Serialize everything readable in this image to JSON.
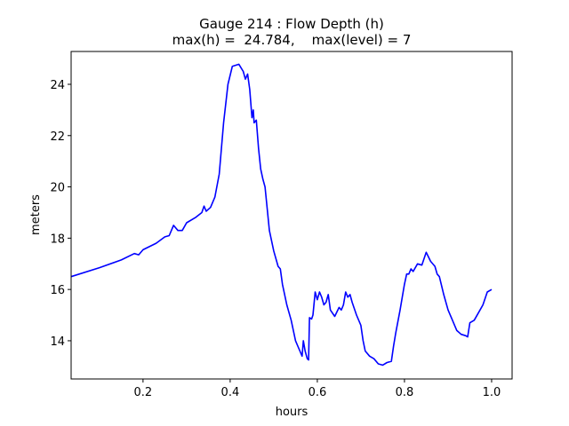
{
  "chart_data": {
    "type": "line",
    "title": "Gauge 214 : Flow Depth (h)",
    "subtitle": "max(h) =  24.784,    max(level) = 7",
    "x_label": "hours",
    "y_label": "meters",
    "xlim": [
      0.035,
      1.047
    ],
    "ylim": [
      12.51,
      25.28
    ],
    "xticks": [
      0.2,
      0.4,
      0.6,
      0.8,
      {
        "value": 1,
        "label": "1.0"
      }
    ],
    "yticks": [
      14,
      16,
      18,
      20,
      22,
      24
    ],
    "series": [
      {
        "color": "#0000ff",
        "x": [
          0.035,
          0.1,
          0.15,
          0.18,
          0.19,
          0.2,
          0.23,
          0.25,
          0.26,
          0.27,
          0.28,
          0.29,
          0.3,
          0.32,
          0.335,
          0.34,
          0.345,
          0.355,
          0.365,
          0.375,
          0.385,
          0.395,
          0.405,
          0.42,
          0.43,
          0.435,
          0.44,
          0.445,
          0.45,
          0.453,
          0.455,
          0.46,
          0.465,
          0.47,
          0.475,
          0.48,
          0.49,
          0.5,
          0.51,
          0.515,
          0.52,
          0.53,
          0.54,
          0.55,
          0.56,
          0.565,
          0.568,
          0.572,
          0.577,
          0.58,
          0.582,
          0.587,
          0.59,
          0.595,
          0.6,
          0.605,
          0.61,
          0.615,
          0.62,
          0.625,
          0.63,
          0.64,
          0.65,
          0.655,
          0.66,
          0.665,
          0.67,
          0.675,
          0.68,
          0.69,
          0.7,
          0.705,
          0.71,
          0.72,
          0.73,
          0.74,
          0.75,
          0.76,
          0.77,
          0.775,
          0.78,
          0.79,
          0.8,
          0.805,
          0.81,
          0.815,
          0.82,
          0.83,
          0.84,
          0.85,
          0.86,
          0.87,
          0.875,
          0.88,
          0.89,
          0.9,
          0.91,
          0.92,
          0.93,
          0.94,
          0.945,
          0.95,
          0.96,
          0.97,
          0.98,
          0.99,
          1.0
        ],
        "values": [
          16.5,
          16.85,
          17.15,
          17.4,
          17.35,
          17.55,
          17.8,
          18.05,
          18.1,
          18.5,
          18.3,
          18.3,
          18.6,
          18.8,
          19.0,
          19.25,
          19.05,
          19.2,
          19.6,
          20.5,
          22.5,
          24.0,
          24.7,
          24.78,
          24.5,
          24.2,
          24.4,
          23.8,
          22.7,
          23.0,
          22.5,
          22.6,
          21.5,
          20.7,
          20.3,
          20.0,
          18.3,
          17.5,
          16.9,
          16.8,
          16.2,
          15.4,
          14.8,
          14.0,
          13.6,
          13.4,
          14.0,
          13.6,
          13.3,
          13.25,
          14.9,
          14.85,
          15.0,
          15.9,
          15.6,
          15.9,
          15.7,
          15.4,
          15.5,
          15.8,
          15.2,
          14.95,
          15.3,
          15.2,
          15.4,
          15.9,
          15.7,
          15.8,
          15.5,
          15.0,
          14.6,
          14.0,
          13.6,
          13.4,
          13.3,
          13.1,
          13.05,
          13.15,
          13.2,
          13.8,
          14.3,
          15.2,
          16.2,
          16.6,
          16.6,
          16.8,
          16.7,
          17.0,
          16.95,
          17.45,
          17.1,
          16.9,
          16.6,
          16.5,
          15.8,
          15.2,
          14.8,
          14.4,
          14.25,
          14.2,
          14.15,
          14.7,
          14.8,
          15.1,
          15.4,
          15.9,
          16.0
        ]
      }
    ]
  }
}
